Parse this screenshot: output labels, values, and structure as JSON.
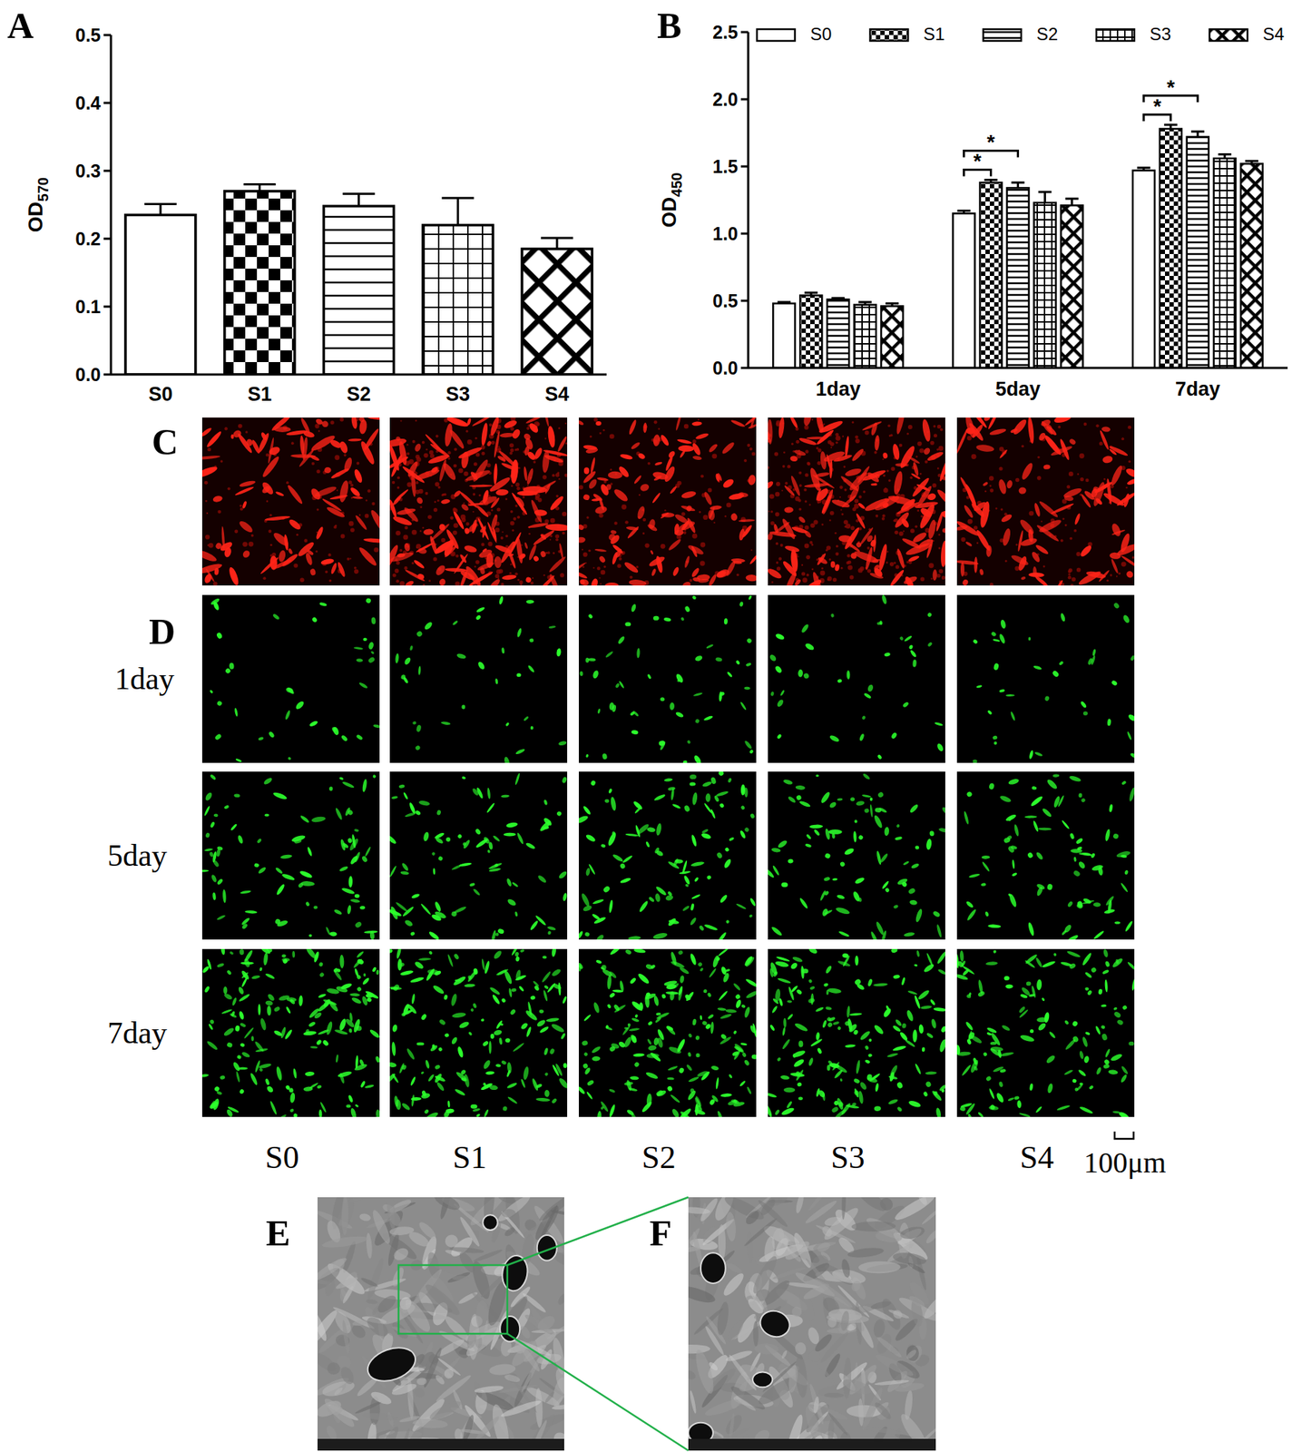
{
  "chart_data": [
    {
      "type": "bar",
      "y_label": "OD",
      "y_label_subscript": "570",
      "categories": [
        "S0",
        "S1",
        "S2",
        "S3",
        "S4"
      ],
      "values": [
        0.235,
        0.27,
        0.248,
        0.22,
        0.185
      ],
      "errors": [
        0.016,
        0.01,
        0.018,
        0.04,
        0.016
      ],
      "color": "#000000",
      "ylim": [
        0,
        0.5
      ],
      "yticks": [
        {
          "value": 0,
          "label": "0.0"
        },
        0.1,
        0.2,
        0.3,
        0.4,
        0.5
      ]
    },
    {
      "type": "bar",
      "y_label": "OD",
      "y_label_subscript": "450",
      "categories": [
        "1day",
        "5day",
        "7day"
      ],
      "series": [
        {
          "name": "S0",
          "color": "#000000",
          "values": [
            0.48,
            1.15,
            1.47
          ],
          "errors": [
            0.01,
            0.02,
            0.02
          ]
        },
        {
          "name": "S1",
          "color": "#000000",
          "values": [
            0.54,
            1.38,
            1.78
          ],
          "errors": [
            0.02,
            0.02,
            0.03
          ]
        },
        {
          "name": "S2",
          "color": "#000000",
          "values": [
            0.51,
            1.34,
            1.72
          ],
          "errors": [
            0.01,
            0.04,
            0.04
          ]
        },
        {
          "name": "S3",
          "color": "#000000",
          "values": [
            0.47,
            1.23,
            1.56
          ],
          "errors": [
            0.02,
            0.08,
            0.03
          ]
        },
        {
          "name": "S4",
          "color": "#000000",
          "values": [
            0.46,
            1.21,
            1.52
          ],
          "errors": [
            0.02,
            0.05,
            0.02
          ]
        }
      ],
      "ylim": [
        0,
        2.5
      ],
      "yticks": [
        {
          "value": 0,
          "label": "0.0"
        },
        0.5,
        {
          "value": 1,
          "label": "1.0"
        },
        1.5,
        {
          "value": 2,
          "label": "2.0"
        },
        2.5
      ],
      "legend": "top",
      "annotations": [
        {
          "text": "*",
          "category": "5day",
          "series": [
            "S0",
            "S1"
          ]
        },
        {
          "text": "*",
          "category": "5day",
          "series": [
            "S0",
            "S2"
          ]
        },
        {
          "text": "*",
          "category": "7day",
          "series": [
            "S0",
            "S1"
          ]
        },
        {
          "text": "*",
          "category": "7day",
          "series": [
            "S0",
            "S2"
          ]
        }
      ]
    }
  ],
  "figure": {
    "panel_labels": [
      "A",
      "B",
      "C",
      "D",
      "E",
      "F"
    ],
    "row_labels": [
      "1day",
      "5day",
      "7day"
    ],
    "column_labels": [
      "S0",
      "S1",
      "S2",
      "S3",
      "S4"
    ],
    "scale_bar": "100μm"
  }
}
